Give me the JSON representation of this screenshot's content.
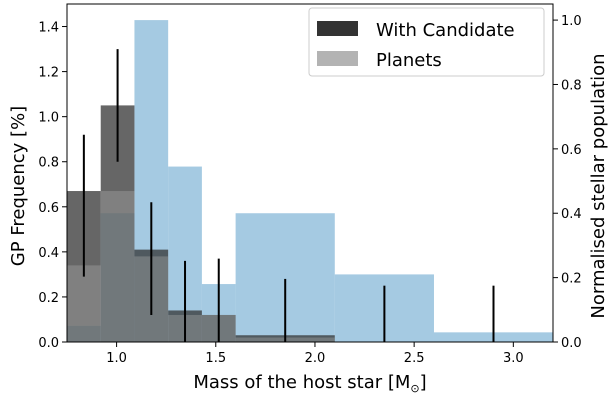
{
  "chart_data": {
    "type": "bar",
    "xlabel": "Mass of the host star [M",
    "xlabel_symbol": "⊙",
    "xlabel_suffix": "]",
    "ylabel": "GP Frequency [%]",
    "y2label": "Normalised stellar population",
    "xlim": [
      0.75,
      3.2
    ],
    "ylim": [
      0,
      1.5
    ],
    "y2lim": [
      0,
      1.05
    ],
    "xticks": [
      1.0,
      1.5,
      2.0,
      2.5,
      3.0
    ],
    "xtick_labels": [
      "1.0",
      "1.5",
      "2.0",
      "2.5",
      "3.0"
    ],
    "yticks": [
      0,
      0.2,
      0.4,
      0.6,
      0.8,
      1.0,
      1.2,
      1.4
    ],
    "ytick_labels": [
      "0.0",
      "0.2",
      "0.4",
      "0.6",
      "0.8",
      "1.0",
      "1.2",
      "1.4"
    ],
    "y2ticks": [
      0,
      0.2,
      0.4,
      0.6,
      0.8,
      1.0
    ],
    "y2tick_labels": [
      "0.0",
      "0.2",
      "0.4",
      "0.6",
      "0.8",
      "1.0"
    ],
    "legend": {
      "placement": "top-right",
      "entries": [
        "With Candidate",
        "Planets"
      ]
    },
    "colors": {
      "candidate": "#333333",
      "planets": "#b3b3b3",
      "population": "#7fb3d5",
      "errorbar": "#000000"
    },
    "series": [
      {
        "name": "With Candidate",
        "axis": "left",
        "bins": [
          {
            "x0": 0.75,
            "x1": 0.92,
            "value": 0.67,
            "err_low": 0.29,
            "err_high": 0.92,
            "center": 0.835
          },
          {
            "x0": 0.92,
            "x1": 1.09,
            "value": 1.05,
            "err_low": 0.8,
            "err_high": 1.3,
            "center": 1.005
          },
          {
            "x0": 1.09,
            "x1": 1.26,
            "value": 0.41,
            "err_low": 0.12,
            "err_high": 0.62,
            "center": 1.175
          },
          {
            "x0": 1.26,
            "x1": 1.43,
            "value": 0.14,
            "err_low": 0.0,
            "err_high": 0.36,
            "center": 1.345
          },
          {
            "x0": 1.43,
            "x1": 1.6,
            "value": 0.12,
            "err_low": 0.0,
            "err_high": 0.37,
            "center": 1.515
          },
          {
            "x0": 1.6,
            "x1": 2.1,
            "value": 0.03,
            "err_low": 0.0,
            "err_high": 0.28,
            "center": 1.85
          },
          {
            "x0": 2.1,
            "x1": 2.6,
            "value": 0.0,
            "err_low": 0.0,
            "err_high": 0.25,
            "center": 2.35
          },
          {
            "x0": 2.6,
            "x1": 3.2,
            "value": 0.0,
            "err_low": 0.0,
            "err_high": 0.25,
            "center": 2.9
          }
        ]
      },
      {
        "name": "Planets",
        "axis": "left",
        "bins": [
          {
            "x0": 0.75,
            "x1": 0.92,
            "value": 0.34
          },
          {
            "x0": 0.92,
            "x1": 1.09,
            "value": 0.67
          },
          {
            "x0": 1.09,
            "x1": 1.26,
            "value": 0.38
          },
          {
            "x0": 1.26,
            "x1": 1.43,
            "value": 0.12
          },
          {
            "x0": 1.43,
            "x1": 1.6,
            "value": 0.12
          },
          {
            "x0": 1.6,
            "x1": 2.1,
            "value": 0.02
          },
          {
            "x0": 2.1,
            "x1": 2.6,
            "value": 0.0
          },
          {
            "x0": 2.6,
            "x1": 3.2,
            "value": 0.0
          }
        ]
      },
      {
        "axis": "right",
        "bins": [
          {
            "x0": 0.75,
            "x1": 0.92,
            "value": 0.05
          },
          {
            "x0": 0.92,
            "x1": 1.09,
            "value": 0.4
          },
          {
            "x0": 1.09,
            "x1": 1.26,
            "value": 1.0
          },
          {
            "x0": 1.26,
            "x1": 1.43,
            "value": 0.545
          },
          {
            "x0": 1.43,
            "x1": 1.6,
            "value": 0.18
          },
          {
            "x0": 1.6,
            "x1": 2.1,
            "value": 0.4
          },
          {
            "x0": 2.1,
            "x1": 2.6,
            "value": 0.21
          },
          {
            "x0": 2.6,
            "x1": 3.2,
            "value": 0.03
          }
        ]
      }
    ]
  }
}
